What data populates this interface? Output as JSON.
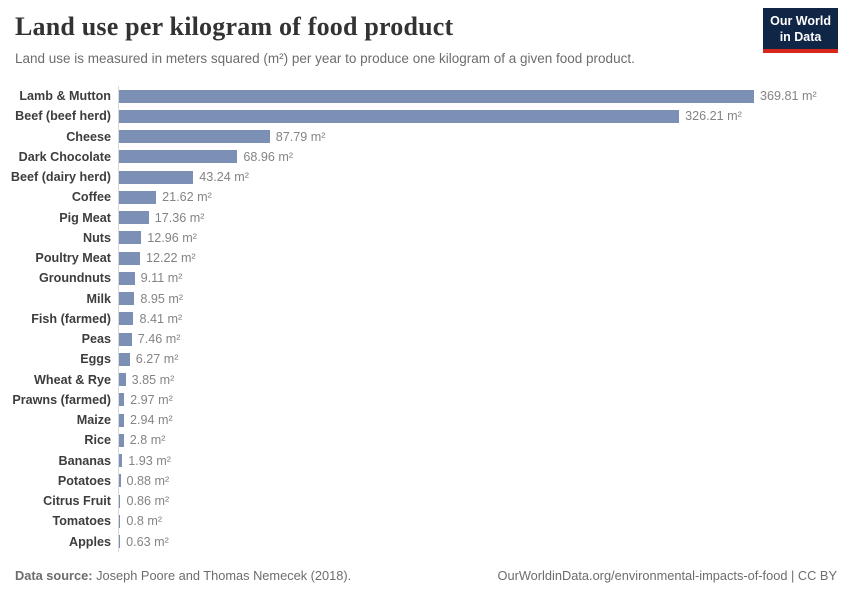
{
  "header": {
    "title": "Land use per kilogram of food product",
    "subtitle": "Land use is measured in meters squared (m²) per year to produce one kilogram of a given food product.",
    "logo_line1": "Our World",
    "logo_line2": "in Data",
    "logo_bg_color": "#102647",
    "logo_accent_color": "#d6271d"
  },
  "chart_data": {
    "type": "bar",
    "orientation": "horizontal",
    "title": "Land use per kilogram of food product",
    "unit": "m²",
    "xlim": [
      0,
      369.81
    ],
    "grid": false,
    "legend": "none",
    "bar_color": "#7b90b4",
    "axis_color": "#d8d8d8",
    "categories": [
      "Lamb & Mutton",
      "Beef (beef herd)",
      "Cheese",
      "Dark Chocolate",
      "Beef (dairy herd)",
      "Coffee",
      "Pig Meat",
      "Nuts",
      "Poultry Meat",
      "Groundnuts",
      "Milk",
      "Fish (farmed)",
      "Peas",
      "Eggs",
      "Wheat & Rye",
      "Prawns (farmed)",
      "Maize",
      "Rice",
      "Bananas",
      "Potatoes",
      "Citrus Fruit",
      "Tomatoes",
      "Apples"
    ],
    "values": [
      369.81,
      326.21,
      87.79,
      68.96,
      43.24,
      21.62,
      17.36,
      12.96,
      12.22,
      9.11,
      8.95,
      8.41,
      7.46,
      6.27,
      3.85,
      2.97,
      2.94,
      2.8,
      1.93,
      0.88,
      0.86,
      0.8,
      0.63
    ],
    "value_labels": [
      "369.81 m²",
      "326.21 m²",
      "87.79 m²",
      "68.96 m²",
      "43.24 m²",
      "21.62 m²",
      "17.36 m²",
      "12.96 m²",
      "12.22 m²",
      "9.11 m²",
      "8.95 m²",
      "8.41 m²",
      "7.46 m²",
      "6.27 m²",
      "3.85 m²",
      "2.97 m²",
      "2.94 m²",
      "2.8 m²",
      "1.93 m²",
      "0.88 m²",
      "0.86 m²",
      "0.8 m²",
      "0.63 m²"
    ]
  },
  "footer": {
    "datasource_label": "Data source:",
    "datasource_text": " Joseph Poore and Thomas Nemecek (2018).",
    "right_text": "OurWorldinData.org/environmental-impacts-of-food | CC BY"
  }
}
